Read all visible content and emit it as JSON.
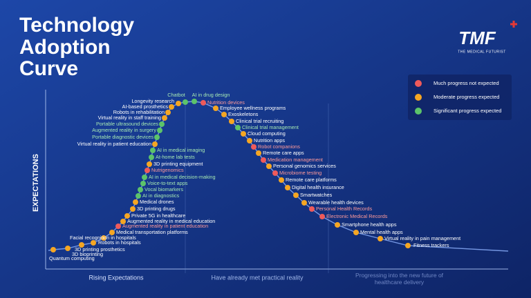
{
  "header": {
    "title": [
      "Technology",
      "Adoption",
      "Curve"
    ]
  },
  "logo": {
    "name": "TMF",
    "tagline": "THE MEDICAL FUTURIST"
  },
  "legend": [
    {
      "label": "Much progress not expected",
      "color": "#ef5a5a"
    },
    {
      "label": "Moderate progress expected",
      "color": "#f5a623"
    },
    {
      "label": "Significant progress expected",
      "color": "#5cc36a"
    }
  ],
  "axis": {
    "y_label": "EXPECTATIONS"
  },
  "phases": [
    "Rising Expectations",
    "Have already met practical reality",
    "Progressing into the new future of healthcare delivery"
  ],
  "items": [
    {
      "label": "Quantum computing",
      "color": "#f5a623"
    },
    {
      "label": "3D bioprinting",
      "color": "#f5a623"
    },
    {
      "label": "3D printing prosthetics",
      "color": "#f5a623"
    },
    {
      "label": "Robots in hospitals",
      "color": "#f5a623"
    },
    {
      "label": "Facial recognition in hospitals",
      "color": "#f5a623"
    },
    {
      "label": "Medical transportation platforms",
      "color": "#f5a623"
    },
    {
      "label": "Augmented reality in patient education",
      "color": "#ef5a5a"
    },
    {
      "label": "Augmented reality in medical education",
      "color": "#f5a623"
    },
    {
      "label": "Private 5G in healthcare",
      "color": "#f5a623"
    },
    {
      "label": "3D printing drugs",
      "color": "#f5a623"
    },
    {
      "label": "Medical drones",
      "color": "#f5a623"
    },
    {
      "label": "AI in diagnostics",
      "color": "#5cc36a"
    },
    {
      "label": "Vocal biomarkers",
      "color": "#5cc36a"
    },
    {
      "label": "Voice-to-text apps",
      "color": "#5cc36a"
    },
    {
      "label": "AI in medical decision-making",
      "color": "#5cc36a"
    },
    {
      "label": "Nutrigenomics",
      "color": "#ef5a5a"
    },
    {
      "label": "3D printing equipment",
      "color": "#f5a623"
    },
    {
      "label": "At-home lab tests",
      "color": "#5cc36a"
    },
    {
      "label": "AI in medical imaging",
      "color": "#5cc36a"
    },
    {
      "label": "Virtual reality in patient education",
      "color": "#f5a623"
    },
    {
      "label": "Portable diagnostic devices",
      "color": "#5cc36a"
    },
    {
      "label": "Augmented reality in surgery",
      "color": "#5cc36a"
    },
    {
      "label": "Portable ultrasound devices",
      "color": "#5cc36a"
    },
    {
      "label": "Virtual reality in staff training",
      "color": "#f5a623"
    },
    {
      "label": "Robots in rehabilitation",
      "color": "#f5a623"
    },
    {
      "label": "AI-based prosthetics",
      "color": "#f5a623"
    },
    {
      "label": "Longevity research",
      "color": "#f5a623"
    },
    {
      "label": "Chatbot",
      "color": "#5cc36a"
    },
    {
      "label": "AI in drug design",
      "color": "#5cc36a"
    },
    {
      "label": "Nutrition devices",
      "color": "#ef5a5a"
    },
    {
      "label": "Employee wellness programs",
      "color": "#f5a623"
    },
    {
      "label": "Exoskeletons",
      "color": "#f5a623"
    },
    {
      "label": "Clinical trial recruiting",
      "color": "#f5a623"
    },
    {
      "label": "Clinical trial management",
      "color": "#5cc36a"
    },
    {
      "label": "Cloud computing",
      "color": "#f5a623"
    },
    {
      "label": "Nutrition apps",
      "color": "#f5a623"
    },
    {
      "label": "Robot companions",
      "color": "#ef5a5a"
    },
    {
      "label": "Remote care apps",
      "color": "#f5a623"
    },
    {
      "label": "Medication management",
      "color": "#ef5a5a"
    },
    {
      "label": "Personal genomics services",
      "color": "#f5a623"
    },
    {
      "label": "Microbiome testing",
      "color": "#ef5a5a"
    },
    {
      "label": "Remote care platforms",
      "color": "#f5a623"
    },
    {
      "label": "Digital health insurance",
      "color": "#f5a623"
    },
    {
      "label": "Smartwatches",
      "color": "#f5a623"
    },
    {
      "label": "Wearable health devices",
      "color": "#f5a623"
    },
    {
      "label": "Personal Health Records",
      "color": "#ef5a5a"
    },
    {
      "label": "Electronic Medical Records",
      "color": "#ef5a5a"
    },
    {
      "label": "Smartphone health apps",
      "color": "#f5a623"
    },
    {
      "label": "Mental health apps",
      "color": "#f5a623"
    },
    {
      "label": "Virtual reality in pain management",
      "color": "#f5a623"
    },
    {
      "label": "Fitness trackers",
      "color": "#f5a623"
    }
  ]
}
